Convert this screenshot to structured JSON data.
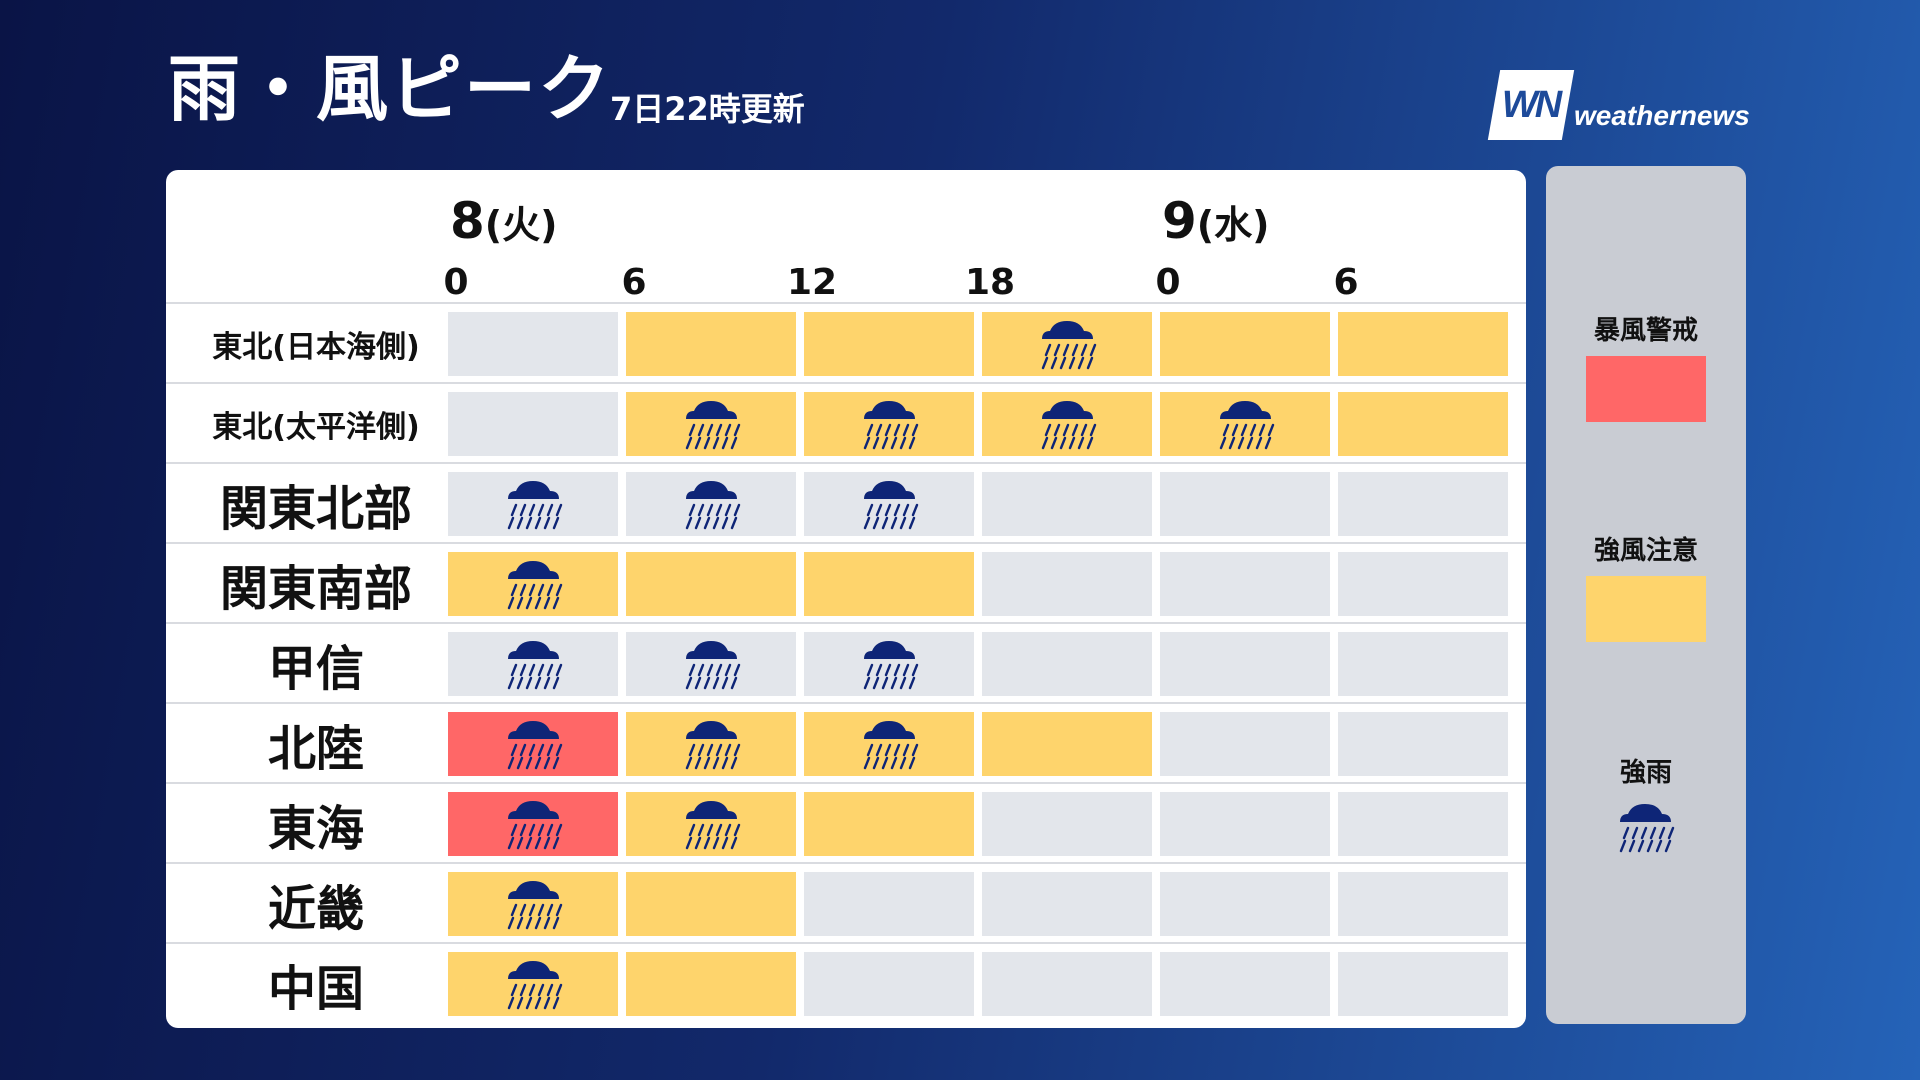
{
  "header": {
    "title": "雨・風ピーク",
    "updated": "7日22時更新",
    "logo_mark": "WN",
    "logo_text": "weathernews"
  },
  "days": [
    {
      "num": "8",
      "weekday": "(火)"
    },
    {
      "num": "9",
      "weekday": "(水)"
    }
  ],
  "hours": [
    "0",
    "6",
    "12",
    "18",
    "0",
    "6"
  ],
  "colors": {
    "none": "#e3e6eb",
    "caution": "#fed46c",
    "warning": "#ff6767",
    "rain_icon": "#0e2577"
  },
  "regions": [
    {
      "name": "東北(日本海側)",
      "size": "small",
      "cells": [
        {
          "level": "none",
          "rain": false
        },
        {
          "level": "caution",
          "rain": false
        },
        {
          "level": "caution",
          "rain": false
        },
        {
          "level": "caution",
          "rain": true
        },
        {
          "level": "caution",
          "rain": false
        },
        {
          "level": "caution",
          "rain": false
        }
      ]
    },
    {
      "name": "東北(太平洋側)",
      "size": "small",
      "cells": [
        {
          "level": "none",
          "rain": false
        },
        {
          "level": "caution",
          "rain": true
        },
        {
          "level": "caution",
          "rain": true
        },
        {
          "level": "caution",
          "rain": true
        },
        {
          "level": "caution",
          "rain": true
        },
        {
          "level": "caution",
          "rain": false
        }
      ]
    },
    {
      "name": "関東北部",
      "size": "big",
      "cells": [
        {
          "level": "none",
          "rain": true
        },
        {
          "level": "none",
          "rain": true
        },
        {
          "level": "none",
          "rain": true
        },
        {
          "level": "none",
          "rain": false
        },
        {
          "level": "none",
          "rain": false
        },
        {
          "level": "none",
          "rain": false
        }
      ]
    },
    {
      "name": "関東南部",
      "size": "big",
      "cells": [
        {
          "level": "caution",
          "rain": true
        },
        {
          "level": "caution",
          "rain": false
        },
        {
          "level": "caution",
          "rain": false
        },
        {
          "level": "none",
          "rain": false
        },
        {
          "level": "none",
          "rain": false
        },
        {
          "level": "none",
          "rain": false
        }
      ]
    },
    {
      "name": "甲信",
      "size": "big",
      "cells": [
        {
          "level": "none",
          "rain": true
        },
        {
          "level": "none",
          "rain": true
        },
        {
          "level": "none",
          "rain": true
        },
        {
          "level": "none",
          "rain": false
        },
        {
          "level": "none",
          "rain": false
        },
        {
          "level": "none",
          "rain": false
        }
      ]
    },
    {
      "name": "北陸",
      "size": "big",
      "cells": [
        {
          "level": "warning",
          "rain": true
        },
        {
          "level": "caution",
          "rain": true
        },
        {
          "level": "caution",
          "rain": true
        },
        {
          "level": "caution",
          "rain": false
        },
        {
          "level": "none",
          "rain": false
        },
        {
          "level": "none",
          "rain": false
        }
      ]
    },
    {
      "name": "東海",
      "size": "big",
      "cells": [
        {
          "level": "warning",
          "rain": true
        },
        {
          "level": "caution",
          "rain": true
        },
        {
          "level": "caution",
          "rain": false
        },
        {
          "level": "none",
          "rain": false
        },
        {
          "level": "none",
          "rain": false
        },
        {
          "level": "none",
          "rain": false
        }
      ]
    },
    {
      "name": "近畿",
      "size": "big",
      "cells": [
        {
          "level": "caution",
          "rain": true
        },
        {
          "level": "caution",
          "rain": false
        },
        {
          "level": "none",
          "rain": false
        },
        {
          "level": "none",
          "rain": false
        },
        {
          "level": "none",
          "rain": false
        },
        {
          "level": "none",
          "rain": false
        }
      ]
    },
    {
      "name": "中国",
      "size": "big",
      "cells": [
        {
          "level": "caution",
          "rain": true
        },
        {
          "level": "caution",
          "rain": false
        },
        {
          "level": "none",
          "rain": false
        },
        {
          "level": "none",
          "rain": false
        },
        {
          "level": "none",
          "rain": false
        },
        {
          "level": "none",
          "rain": false
        }
      ]
    }
  ],
  "legend": {
    "warning_label": "暴風警戒",
    "caution_label": "強風注意",
    "rain_label": "強雨",
    "rain_icon": "heavy-rain-icon"
  }
}
